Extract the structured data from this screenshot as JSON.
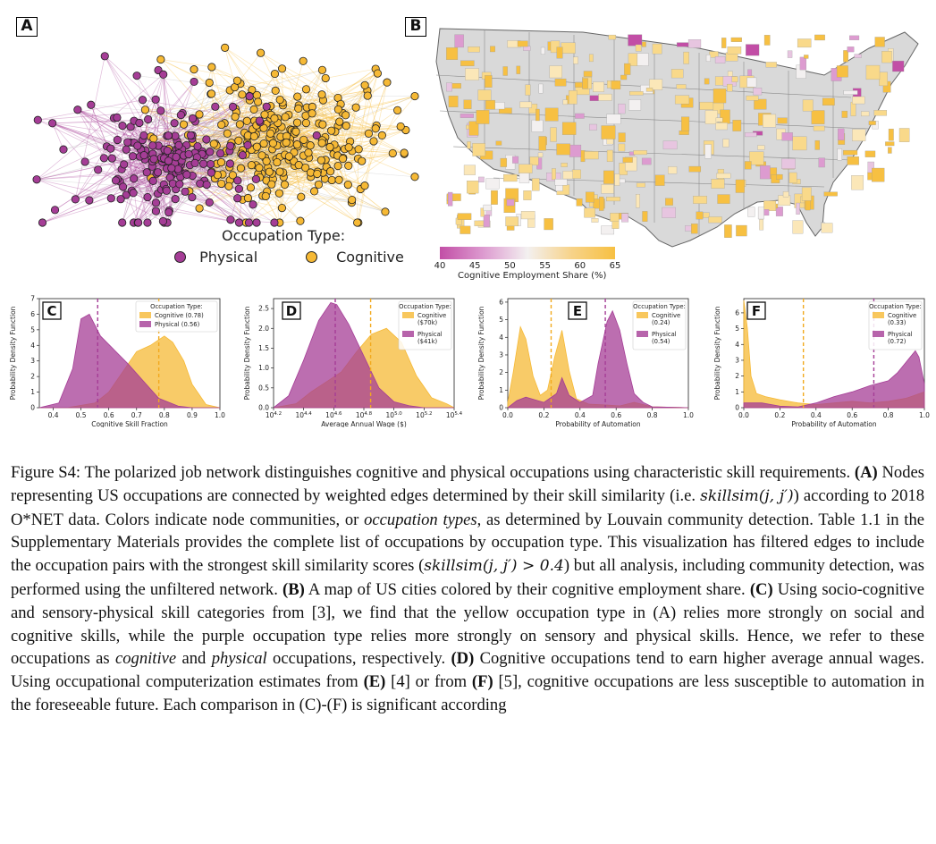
{
  "panel_labels": {
    "A": "A",
    "B": "B",
    "C": "C",
    "D": "D",
    "E": "E",
    "F": "F"
  },
  "network": {
    "legend_title": "Occupation Type:",
    "physical_label": "Physical",
    "cognitive_label": "Cognitive",
    "colors": {
      "physical": "#a53d96",
      "cognitive": "#f6b935"
    }
  },
  "map": {
    "colorbar_ticks": [
      "40",
      "45",
      "50",
      "55",
      "60",
      "65"
    ],
    "colorbar_label": "Cognitive Employment Share (%)",
    "colors": {
      "low": "#c24ea6",
      "mid": "#f3f0f0",
      "high": "#f7c042",
      "land": "#d9d9d9"
    }
  },
  "chart_data": [
    {
      "panel": "C",
      "type": "area",
      "xlabel": "Cognitive Skill Fraction",
      "ylabel": "Probability Density Function",
      "xlim": [
        0.35,
        1.0
      ],
      "ylim": [
        0,
        7
      ],
      "xticks": [
        "0.4",
        "0.5",
        "0.6",
        "0.7",
        "0.8",
        "0.9",
        "1.0"
      ],
      "yticks": [
        "0",
        "1",
        "2",
        "3",
        "4",
        "5",
        "6",
        "7"
      ],
      "legend_title": "Occupation Type:",
      "series": [
        {
          "name": "Cognitive (0.78)",
          "mean": 0.78,
          "x": [
            0.35,
            0.45,
            0.55,
            0.6,
            0.65,
            0.7,
            0.75,
            0.8,
            0.83,
            0.87,
            0.9,
            0.95,
            1.0
          ],
          "y": [
            0,
            0,
            0.3,
            1.0,
            2.3,
            3.6,
            4.0,
            4.6,
            4.2,
            3.0,
            1.5,
            0.2,
            0
          ]
        },
        {
          "name": "Physical (0.56)",
          "mean": 0.56,
          "x": [
            0.35,
            0.42,
            0.47,
            0.5,
            0.53,
            0.57,
            0.62,
            0.67,
            0.72,
            0.78,
            0.85,
            0.9,
            1.0
          ],
          "y": [
            0,
            0.3,
            2.5,
            5.7,
            6.0,
            4.6,
            3.7,
            2.8,
            1.8,
            0.6,
            0.1,
            0,
            0
          ]
        }
      ]
    },
    {
      "panel": "D",
      "type": "area",
      "xlabel": "Average Annual Wage ($)",
      "ylabel": "Probability Density Function",
      "xlim": [
        4.2,
        5.4
      ],
      "ylim": [
        0,
        2.75
      ],
      "xticks": [
        "10^4.2",
        "10^4.4",
        "10^4.6",
        "10^4.8",
        "10^5.0",
        "10^5.2",
        "10^5.4"
      ],
      "yticks": [
        "0.0",
        "0.5",
        "1.0",
        "1.5",
        "2.0",
        "2.5"
      ],
      "legend_title": "Occupation Type:",
      "series": [
        {
          "name": "Cognitive ($70k)",
          "mean": 4.845,
          "x": [
            4.2,
            4.35,
            4.45,
            4.55,
            4.65,
            4.75,
            4.85,
            4.95,
            5.05,
            5.15,
            5.25,
            5.35,
            5.4
          ],
          "y": [
            0,
            0.1,
            0.4,
            0.65,
            0.9,
            1.4,
            1.85,
            2.0,
            1.65,
            0.8,
            0.25,
            0.1,
            0
          ]
        },
        {
          "name": "Physical ($41k)",
          "mean": 4.61,
          "x": [
            4.2,
            4.3,
            4.4,
            4.5,
            4.58,
            4.62,
            4.7,
            4.8,
            4.9,
            5.0,
            5.1,
            5.2,
            5.4
          ],
          "y": [
            0,
            0.3,
            1.2,
            2.2,
            2.65,
            2.6,
            2.1,
            1.3,
            0.5,
            0.15,
            0.05,
            0,
            0
          ]
        }
      ]
    },
    {
      "panel": "E",
      "type": "area",
      "xlabel": "Probability of Automation",
      "ylabel": "Probability Density Function",
      "xlim": [
        0,
        1.0
      ],
      "ylim": [
        0,
        6.2
      ],
      "xticks": [
        "0.0",
        "0.2",
        "0.4",
        "0.6",
        "0.8",
        "1.0"
      ],
      "yticks": [
        "0",
        "1",
        "2",
        "3",
        "4",
        "5",
        "6"
      ],
      "legend_title": "Occupation Type:",
      "series": [
        {
          "name": "Cognitive (0.24)",
          "mean": 0.24,
          "x": [
            0,
            0.03,
            0.07,
            0.1,
            0.14,
            0.18,
            0.22,
            0.26,
            0.3,
            0.34,
            0.38,
            0.45,
            0.55,
            0.62,
            0.7,
            0.8,
            1.0
          ],
          "y": [
            0.3,
            2.0,
            4.6,
            3.9,
            1.8,
            0.7,
            1.0,
            2.9,
            4.4,
            2.1,
            0.5,
            0.2,
            0.15,
            0.1,
            0.3,
            0.05,
            0
          ]
        },
        {
          "name": "Physical (0.54)",
          "mean": 0.54,
          "x": [
            0,
            0.05,
            0.1,
            0.2,
            0.27,
            0.3,
            0.34,
            0.4,
            0.47,
            0.5,
            0.55,
            0.58,
            0.62,
            0.66,
            0.7,
            0.75,
            0.8,
            1.0
          ],
          "y": [
            0,
            0.4,
            0.6,
            0.3,
            0.8,
            1.7,
            0.7,
            0.3,
            0.7,
            2.5,
            4.9,
            5.5,
            4.4,
            2.5,
            0.8,
            0.3,
            0.05,
            0
          ]
        }
      ]
    },
    {
      "panel": "F",
      "type": "area",
      "xlabel": "Probability of Automation",
      "ylabel": "Probability Density Function",
      "xlim": [
        0,
        1.0
      ],
      "ylim": [
        0,
        6.9
      ],
      "xticks": [
        "0.0",
        "0.2",
        "0.4",
        "0.6",
        "0.8",
        "1.0"
      ],
      "yticks": [
        "0",
        "1",
        "2",
        "3",
        "4",
        "5",
        "6"
      ],
      "legend_title": "Occupation Type:",
      "series": [
        {
          "name": "Cognitive (0.33)",
          "mean": 0.33,
          "x": [
            0,
            0.02,
            0.04,
            0.07,
            0.12,
            0.2,
            0.3,
            0.4,
            0.5,
            0.6,
            0.7,
            0.8,
            0.9,
            1.0
          ],
          "y": [
            6.8,
            5.0,
            2.0,
            0.9,
            0.7,
            0.5,
            0.3,
            0.2,
            0.3,
            0.4,
            0.3,
            0.4,
            0.6,
            1.0
          ]
        },
        {
          "name": "Physical (0.72)",
          "mean": 0.72,
          "x": [
            0,
            0.1,
            0.2,
            0.3,
            0.4,
            0.5,
            0.6,
            0.7,
            0.8,
            0.85,
            0.9,
            0.95,
            0.97,
            1.0
          ],
          "y": [
            0.3,
            0.3,
            0.1,
            0.05,
            0.3,
            0.7,
            1.0,
            1.4,
            1.7,
            2.2,
            2.9,
            3.6,
            3.2,
            1.5
          ]
        }
      ]
    }
  ],
  "caption": {
    "figure_label": "Figure S4:",
    "s1": " The polarized job network distinguishes cognitive and physical occupations using characteristic skill requirements. ",
    "a_label": "(A)",
    "s2": " Nodes representing US occupations are connected by weighted edges determined by their skill similarity (i.e. ",
    "math1": "skillsim(j, j′)",
    "s3": ") according to 2018 O*NET data. Colors indicate node communities, or ",
    "ital1": "occupation types",
    "s4": ", as determined by Louvain community detection. Table 1.1 in the Supplementary Materials provides the complete list of occupations by occupation type. This visualization has filtered edges to include the occupation pairs with the strongest skill similarity scores (",
    "math2": "skillsim(j, j′) > 0.4",
    "s5": ") but all analysis, including community detection, was performed using the unfiltered network. ",
    "b_label": "(B)",
    "s6": " A map of US cities colored by their cognitive employment share. ",
    "c_label": "(C)",
    "s7": " Using socio-cognitive and sensory-physical skill categories from [3], we find that the yellow occupation type in (A) relies more strongly on social and cognitive skills, while the purple occupation type relies more strongly on sensory and physical skills. Hence, we refer to these occupations as ",
    "ital2": "cognitive",
    "s8": " and ",
    "ital3": "physical",
    "s9": " occupations, respectively. ",
    "d_label": "(D)",
    "s10": " Cognitive occupations tend to earn higher average annual wages. Using occupational computerization estimates from ",
    "e_label": "(E)",
    "s11": " [4] or from ",
    "f_label": "(F)",
    "s12": " [5], cognitive occupations are less susceptible to automation in the foreseeable future. Each comparison in (C)-(F) is significant according"
  }
}
